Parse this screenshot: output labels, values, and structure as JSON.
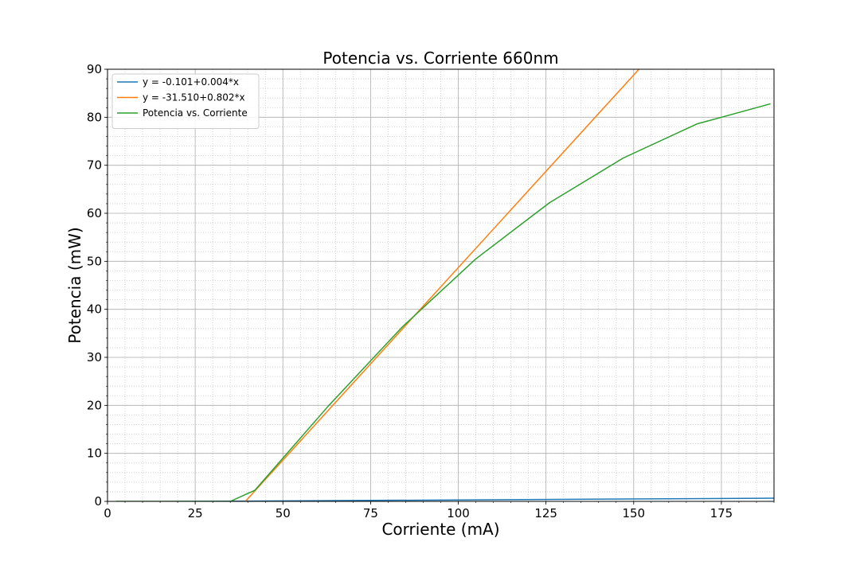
{
  "chart_data": {
    "type": "line",
    "title": "Potencia vs. Corriente 660nm",
    "xlabel": "Corriente (mA)",
    "ylabel": "Potencia (mW)",
    "xlim": [
      0,
      190
    ],
    "ylim": [
      0,
      90
    ],
    "xticks": [
      0,
      25,
      50,
      75,
      100,
      125,
      150,
      175
    ],
    "yticks": [
      0,
      10,
      20,
      30,
      40,
      50,
      60,
      70,
      80,
      90
    ],
    "grid": true,
    "minor_grid": true,
    "legend_position": "upper-left",
    "series": [
      {
        "name": "y = -0.101+0.004*x",
        "color": "#1f77b4",
        "x": [
          2.5,
          190
        ],
        "y": [
          -0.091,
          0.659
        ]
      },
      {
        "name": "y = -31.510+0.802*x",
        "color": "#ff7f0e",
        "x": [
          39.3,
          151.5
        ],
        "y": [
          0,
          90
        ]
      },
      {
        "name": "Potencia vs. Corriente",
        "color": "#2ca02c",
        "x": [
          2.5,
          35,
          42,
          63,
          84,
          105,
          126,
          147,
          168,
          189
        ],
        "y": [
          0,
          0,
          2.3,
          19.9,
          36.3,
          50.5,
          62.2,
          71.5,
          78.6,
          82.8
        ]
      }
    ]
  }
}
